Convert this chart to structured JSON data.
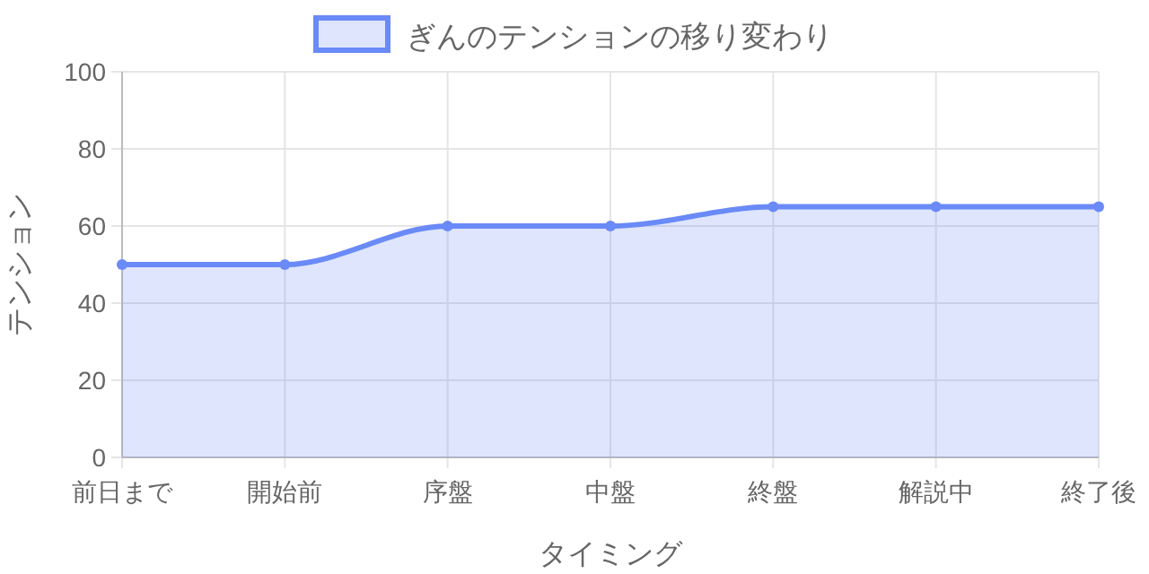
{
  "chart_data": {
    "type": "area",
    "categories": [
      "前日まで",
      "開始前",
      "序盤",
      "中盤",
      "終盤",
      "解説中",
      "終了後"
    ],
    "series": [
      {
        "name": "ぎんのテンションの移り変わり",
        "color": "#6a8af7",
        "values": [
          50,
          50,
          60,
          60,
          65,
          65,
          65
        ]
      }
    ],
    "xlabel": "タイミング",
    "ylabel": "テンション",
    "ylim": [
      0,
      100
    ],
    "yticks": [
      0,
      20,
      40,
      60,
      80,
      100
    ],
    "grid": true,
    "legend": "top",
    "marker": "circle",
    "line_style": "solid"
  }
}
